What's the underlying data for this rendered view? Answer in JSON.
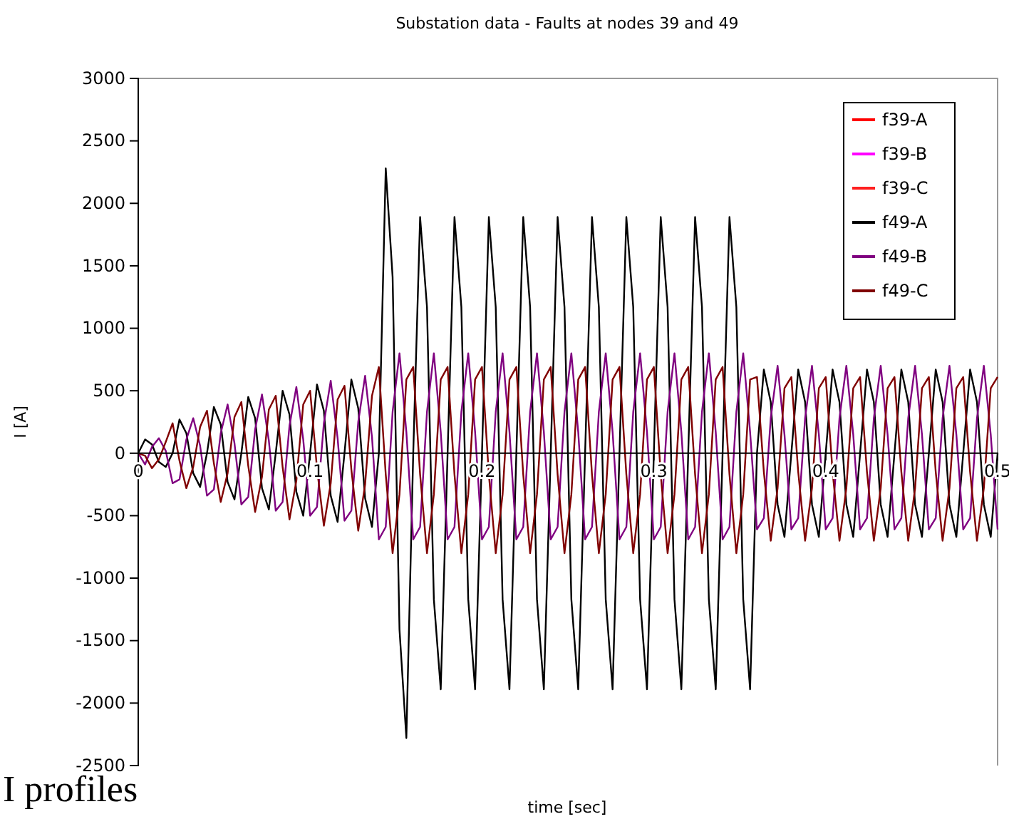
{
  "chart_data": {
    "type": "line",
    "title": "Substation data - Faults  at nodes 39 and 49",
    "xlabel": "time [sec]",
    "ylabel": "I [A]",
    "annotations": [
      "I profiles"
    ],
    "x": [
      0,
      0.004,
      0.008,
      0.012,
      0.016,
      0.02,
      0.024,
      0.028,
      0.032,
      0.036,
      0.04,
      0.044,
      0.048,
      0.052,
      0.056,
      0.06,
      0.064,
      0.068,
      0.072,
      0.076,
      0.08,
      0.084,
      0.088,
      0.092,
      0.096,
      0.1,
      0.104,
      0.108,
      0.112,
      0.116,
      0.12,
      0.124,
      0.128,
      0.132,
      0.136,
      0.14,
      0.144,
      0.148,
      0.152,
      0.156,
      0.16,
      0.164,
      0.168,
      0.172,
      0.176,
      0.18,
      0.184,
      0.188,
      0.192,
      0.196,
      0.2,
      0.204,
      0.208,
      0.212,
      0.216,
      0.22,
      0.224,
      0.228,
      0.232,
      0.236,
      0.24,
      0.244,
      0.248,
      0.252,
      0.256,
      0.26,
      0.264,
      0.268,
      0.272,
      0.276,
      0.28,
      0.284,
      0.288,
      0.292,
      0.296,
      0.3,
      0.304,
      0.308,
      0.312,
      0.316,
      0.32,
      0.324,
      0.328,
      0.332,
      0.336,
      0.34,
      0.344,
      0.348,
      0.352,
      0.356,
      0.36,
      0.364,
      0.368,
      0.372,
      0.376,
      0.38,
      0.384,
      0.388,
      0.392,
      0.396,
      0.4,
      0.404,
      0.408,
      0.412,
      0.416,
      0.42,
      0.424,
      0.428,
      0.432,
      0.436,
      0.44,
      0.444,
      0.448,
      0.452,
      0.456,
      0.46,
      0.464,
      0.468,
      0.472,
      0.476,
      0.48,
      0.484,
      0.488,
      0.492,
      0.496,
      0.5
    ],
    "series": [
      {
        "name": "f39-A",
        "color": "#ff0000",
        "values": [
          null,
          null,
          null,
          null,
          null,
          null,
          null,
          null,
          null,
          null,
          null,
          null,
          null,
          null,
          null,
          null,
          null,
          null,
          null,
          null,
          null,
          null,
          null,
          null,
          null,
          null,
          null,
          null,
          null,
          null,
          null,
          null,
          null,
          null,
          null,
          null,
          null,
          null,
          null,
          null,
          null,
          null,
          null,
          null,
          null,
          null,
          null,
          null,
          null,
          null,
          null,
          null,
          null,
          null,
          null,
          null,
          null,
          null,
          null,
          null,
          null,
          null,
          null,
          null,
          null,
          null,
          null,
          null,
          null,
          null,
          null,
          null,
          null,
          null,
          null,
          null,
          null,
          null,
          null,
          null,
          null,
          null,
          null,
          null,
          null,
          null,
          null,
          null,
          null,
          null,
          null,
          null,
          null,
          null,
          null,
          null,
          null,
          null,
          null,
          null,
          null,
          null,
          null,
          null,
          null,
          null,
          null,
          null,
          null,
          null,
          null,
          null,
          null,
          null,
          null,
          null,
          null,
          null,
          null,
          null,
          null,
          null,
          null,
          null,
          null,
          null
        ]
      },
      {
        "name": "f39-B",
        "color": "#ff00ff",
        "values": [
          null,
          null,
          null,
          null,
          null,
          null,
          null,
          null,
          null,
          null,
          null,
          null,
          null,
          null,
          null,
          null,
          null,
          null,
          null,
          null,
          null,
          null,
          null,
          null,
          null,
          null,
          null,
          null,
          null,
          null,
          null,
          null,
          null,
          null,
          null,
          null,
          null,
          null,
          null,
          null,
          null,
          null,
          null,
          null,
          null,
          null,
          null,
          null,
          null,
          null,
          null,
          null,
          null,
          null,
          null,
          null,
          null,
          null,
          null,
          null,
          null,
          null,
          null,
          null,
          null,
          null,
          null,
          null,
          null,
          null,
          null,
          null,
          null,
          null,
          null,
          null,
          null,
          null,
          null,
          null,
          null,
          null,
          null,
          null,
          null,
          null,
          null,
          null,
          null,
          null,
          null,
          null,
          null,
          null,
          null,
          null,
          null,
          null,
          null,
          null,
          null,
          null,
          null,
          null,
          null,
          null,
          null,
          null,
          null,
          null,
          null,
          null,
          null,
          null,
          null,
          null,
          null,
          null,
          null,
          null,
          null,
          null,
          null,
          null,
          null,
          null
        ]
      },
      {
        "name": "f39-C",
        "color": "#ff2020",
        "values": [
          null,
          null,
          null,
          null,
          null,
          null,
          null,
          null,
          null,
          null,
          null,
          null,
          null,
          null,
          null,
          null,
          null,
          null,
          null,
          null,
          null,
          null,
          null,
          null,
          null,
          null,
          null,
          null,
          null,
          null,
          null,
          null,
          null,
          null,
          null,
          null,
          null,
          null,
          null,
          null,
          null,
          null,
          null,
          null,
          null,
          null,
          null,
          null,
          null,
          null,
          null,
          null,
          null,
          null,
          null,
          null,
          null,
          null,
          null,
          null,
          null,
          null,
          null,
          null,
          null,
          null,
          null,
          null,
          null,
          null,
          null,
          null,
          null,
          null,
          null,
          null,
          null,
          null,
          null,
          null,
          null,
          null,
          null,
          null,
          null,
          null,
          null,
          null,
          null,
          null,
          null,
          null,
          null,
          null,
          null,
          null,
          null,
          null,
          null,
          null,
          null,
          null,
          null,
          null,
          null,
          null,
          null,
          null,
          null,
          null,
          null,
          null,
          null,
          null,
          null,
          null,
          null,
          null,
          null,
          null,
          null,
          null,
          null,
          null,
          null,
          null
        ]
      },
      {
        "name": "f49-A",
        "color": "#000000",
        "values": [
          0,
          110,
          70,
          -70,
          -110,
          0,
          270,
          160,
          -160,
          -270,
          0,
          370,
          230,
          -230,
          -370,
          0,
          450,
          280,
          -280,
          -450,
          0,
          500,
          310,
          -310,
          -500,
          0,
          550,
          340,
          -340,
          -550,
          0,
          590,
          360,
          -360,
          -590,
          0,
          2280,
          1410,
          -1410,
          -2280,
          0,
          1890,
          1170,
          -1170,
          -1890,
          0,
          1890,
          1170,
          -1170,
          -1890,
          0,
          1890,
          1170,
          -1170,
          -1890,
          0,
          1890,
          1170,
          -1170,
          -1890,
          0,
          1890,
          1170,
          -1170,
          -1890,
          0,
          1890,
          1170,
          -1170,
          -1890,
          0,
          1890,
          1170,
          -1170,
          -1890,
          0,
          1890,
          1170,
          -1170,
          -1890,
          0,
          1890,
          1170,
          -1170,
          -1890,
          0,
          1890,
          1170,
          -1170,
          -1890,
          0,
          670,
          410,
          -410,
          -670,
          0,
          670,
          410,
          -410,
          -670,
          0,
          670,
          410,
          -410,
          -670,
          0,
          670,
          410,
          -410,
          -670,
          0,
          670,
          410,
          -410,
          -670,
          0,
          670,
          410,
          -410,
          -670,
          0,
          670,
          410,
          -410,
          -670,
          0
        ]
      },
      {
        "name": "f49-B",
        "color": "#800080",
        "values": [
          0,
          -90,
          50,
          120,
          20,
          -240,
          -210,
          110,
          280,
          60,
          -340,
          -290,
          160,
          390,
          80,
          -410,
          -350,
          190,
          470,
          100,
          -460,
          -390,
          220,
          530,
          110,
          -500,
          -430,
          240,
          580,
          120,
          -540,
          -460,
          250,
          620,
          130,
          -690,
          -590,
          330,
          800,
          170,
          -690,
          -590,
          330,
          800,
          170,
          -690,
          -590,
          330,
          800,
          170,
          -690,
          -590,
          330,
          800,
          170,
          -690,
          -590,
          330,
          800,
          170,
          -690,
          -590,
          330,
          800,
          170,
          -690,
          -590,
          330,
          800,
          170,
          -690,
          -590,
          330,
          800,
          170,
          -690,
          -590,
          330,
          800,
          170,
          -690,
          -590,
          330,
          800,
          170,
          -690,
          -590,
          330,
          800,
          170,
          -610,
          -520,
          280,
          700,
          150,
          -610,
          -520,
          280,
          700,
          150,
          -610,
          -520,
          280,
          700,
          150,
          -610,
          -520,
          280,
          700,
          150,
          -610,
          -520,
          280,
          700,
          150,
          -610,
          -520,
          280,
          700,
          150,
          -610,
          -520,
          280,
          700,
          150,
          -610
        ]
      },
      {
        "name": "f49-C",
        "color": "#800000",
        "values": [
          0,
          -20,
          -120,
          -50,
          90,
          240,
          -60,
          -280,
          -110,
          210,
          340,
          -80,
          -390,
          -160,
          290,
          410,
          -100,
          -470,
          -190,
          350,
          460,
          -110,
          -530,
          -220,
          390,
          500,
          -120,
          -580,
          -240,
          430,
          540,
          -130,
          -620,
          -250,
          460,
          690,
          -170,
          -800,
          -330,
          590,
          690,
          -170,
          -800,
          -330,
          590,
          690,
          -170,
          -800,
          -330,
          590,
          690,
          -170,
          -800,
          -330,
          590,
          690,
          -170,
          -800,
          -330,
          590,
          690,
          -170,
          -800,
          -330,
          590,
          690,
          -170,
          -800,
          -330,
          590,
          690,
          -170,
          -800,
          -330,
          590,
          690,
          -170,
          -800,
          -330,
          590,
          690,
          -170,
          -800,
          -330,
          590,
          690,
          -170,
          -800,
          -330,
          590,
          610,
          -150,
          -700,
          -280,
          520,
          610,
          -150,
          -700,
          -280,
          520,
          610,
          -150,
          -700,
          -280,
          520,
          610,
          -150,
          -700,
          -280,
          520,
          610,
          -150,
          -700,
          -280,
          520,
          610,
          -150,
          -700,
          -280,
          520,
          610,
          -150,
          -700,
          -280,
          520,
          610
        ]
      }
    ],
    "xlim": [
      0,
      0.5
    ],
    "xticks": [
      0,
      0.1,
      0.2,
      0.3,
      0.4,
      0.5
    ],
    "ylim": [
      -2500,
      3000
    ],
    "yticks": [
      -2500,
      -2000,
      -1500,
      -1000,
      -500,
      0,
      500,
      1000,
      1500,
      2000,
      2500,
      3000
    ],
    "grid": false,
    "legend": "top right",
    "marker": "none",
    "line_style": "solid"
  }
}
